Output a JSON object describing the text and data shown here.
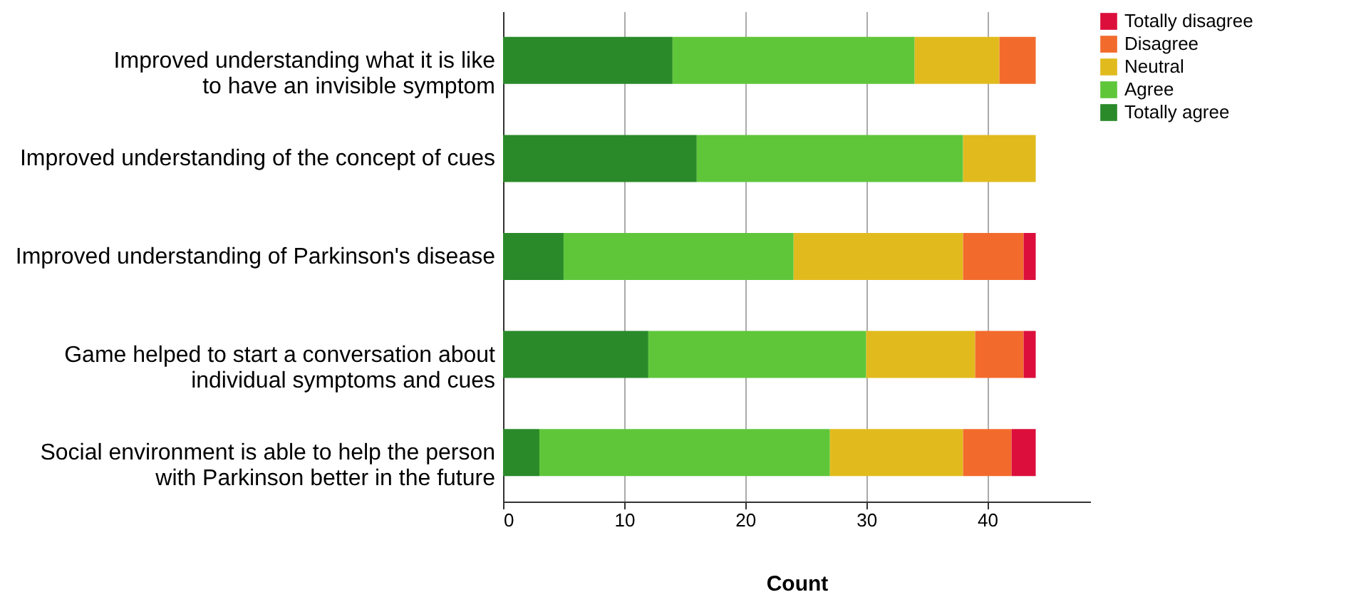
{
  "chart_data": {
    "type": "bar",
    "orientation": "horizontal",
    "stacked": true,
    "xlabel": "Count",
    "categories": [
      "Improved understanding what it is like\nto have an invisible symptom",
      "Improved understanding of the concept of cues",
      "Improved understanding of Parkinson's disease",
      "Game helped to start a conversation about\nindividual symptoms and cues",
      "Social environment is able to help the person\nwith Parkinson better in the future"
    ],
    "series": [
      {
        "name": "Totally agree",
        "color": "#2a8a2a",
        "values": [
          14,
          16,
          5,
          12,
          3
        ]
      },
      {
        "name": "Agree",
        "color": "#5fc63a",
        "values": [
          20,
          22,
          19,
          18,
          24
        ]
      },
      {
        "name": "Neutral",
        "color": "#e1bb1e",
        "values": [
          7,
          6,
          14,
          9,
          11
        ]
      },
      {
        "name": "Disagree",
        "color": "#f26b2d",
        "values": [
          3,
          0,
          5,
          4,
          4
        ]
      },
      {
        "name": "Totally disagree",
        "color": "#dc0f3c",
        "values": [
          0,
          0,
          1,
          1,
          2
        ]
      }
    ],
    "xlim": [
      0,
      48.5
    ],
    "xticks": [
      0,
      10,
      20,
      30,
      40
    ],
    "grid": "x",
    "legend": "top right"
  }
}
